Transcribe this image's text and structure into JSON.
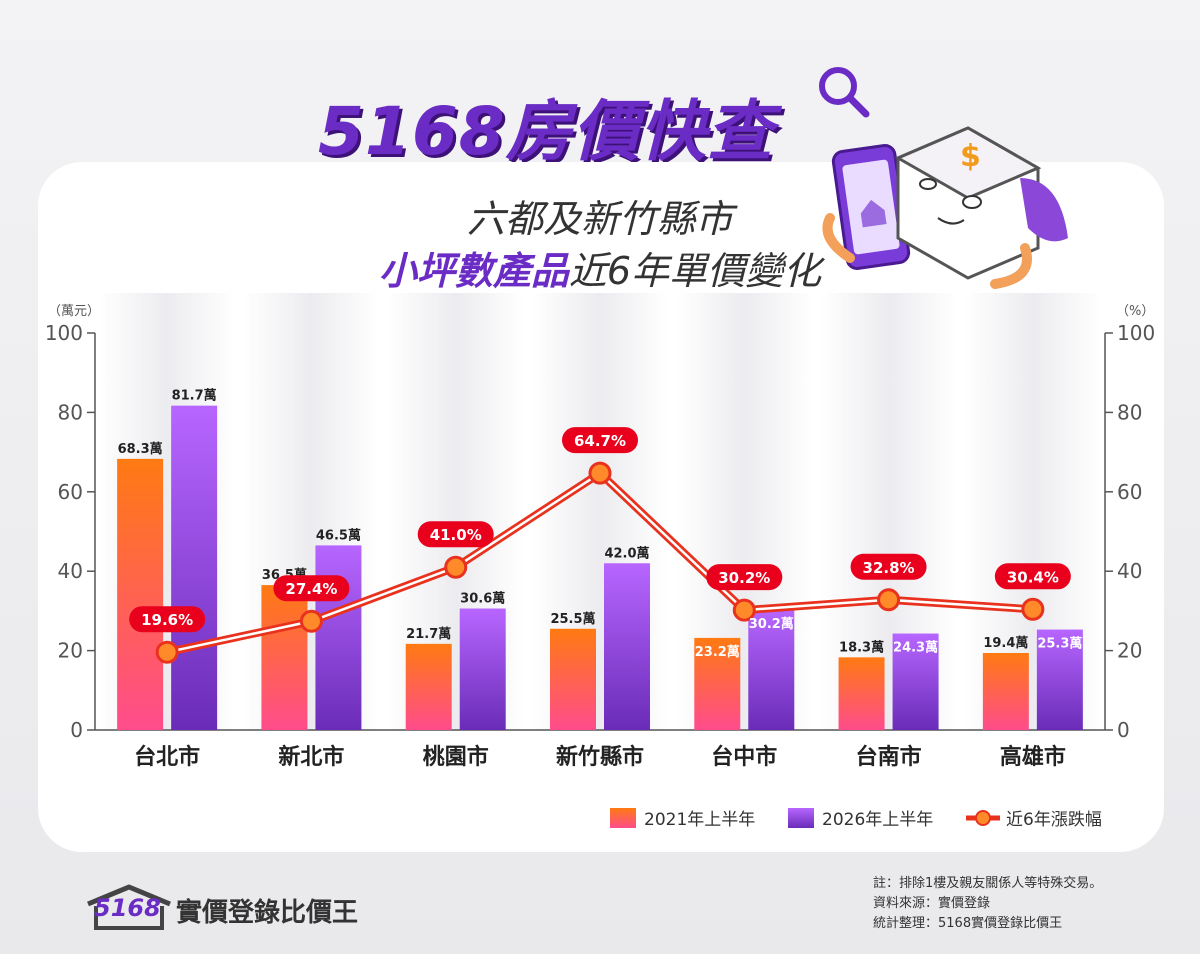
{
  "header": {
    "brand": "5168房價快查",
    "subtitle_line1": "六都及新竹縣市",
    "subtitle_line2_highlight": "小坪數產品",
    "subtitle_line2_rest": "近6年單價變化"
  },
  "chart_data": {
    "type": "bar",
    "categories": [
      "台北市",
      "新北市",
      "桃園市",
      "新竹縣市",
      "台中市",
      "台南市",
      "高雄市"
    ],
    "series": [
      {
        "name": "2021年上半年",
        "kind": "bar",
        "values": [
          68.3,
          36.5,
          21.7,
          25.5,
          23.2,
          18.3,
          19.4
        ],
        "value_labels": [
          "68.3萬",
          "36.5萬",
          "21.7萬",
          "25.5萬",
          "23.2萬",
          "18.3萬",
          "19.4萬"
        ]
      },
      {
        "name": "2026年上半年",
        "kind": "bar",
        "values": [
          81.7,
          46.5,
          30.6,
          42.0,
          30.2,
          24.3,
          25.3
        ],
        "value_labels": [
          "81.7萬",
          "46.5萬",
          "30.6萬",
          "42.0萬",
          "30.2萬",
          "24.3萬",
          "25.3萬"
        ]
      },
      {
        "name": "近6年漲跌幅",
        "kind": "line",
        "axis": "right",
        "values": [
          19.6,
          27.4,
          41.0,
          64.7,
          30.2,
          32.8,
          30.4
        ],
        "value_labels": [
          "19.6%",
          "27.4%",
          "41.0%",
          "64.7%",
          "30.2%",
          "32.8%",
          "30.4%"
        ]
      }
    ],
    "y_left": {
      "unit": "（萬元）",
      "range": [
        0,
        100
      ],
      "ticks": [
        "0",
        "20",
        "40",
        "60",
        "80",
        "100"
      ]
    },
    "y_right": {
      "unit": "（%）",
      "range": [
        0,
        100
      ],
      "ticks": [
        "0",
        "20",
        "40",
        "60",
        "80",
        "100"
      ]
    },
    "legend_placement": "bottom-right",
    "grid": false,
    "colors": {
      "bar_2021": "#ff6a1a",
      "bar_2026": "#9b4fe0",
      "line": "#e8321e",
      "label_bg": "#e8001c"
    }
  },
  "footer": {
    "logo_number": "5168",
    "logo_text": "實價登錄比價王",
    "notes": [
      "註：排除1樓及親友關係人等特殊交易。",
      "資料來源：實價登錄",
      "統計整理：5168實價登錄比價王"
    ]
  }
}
